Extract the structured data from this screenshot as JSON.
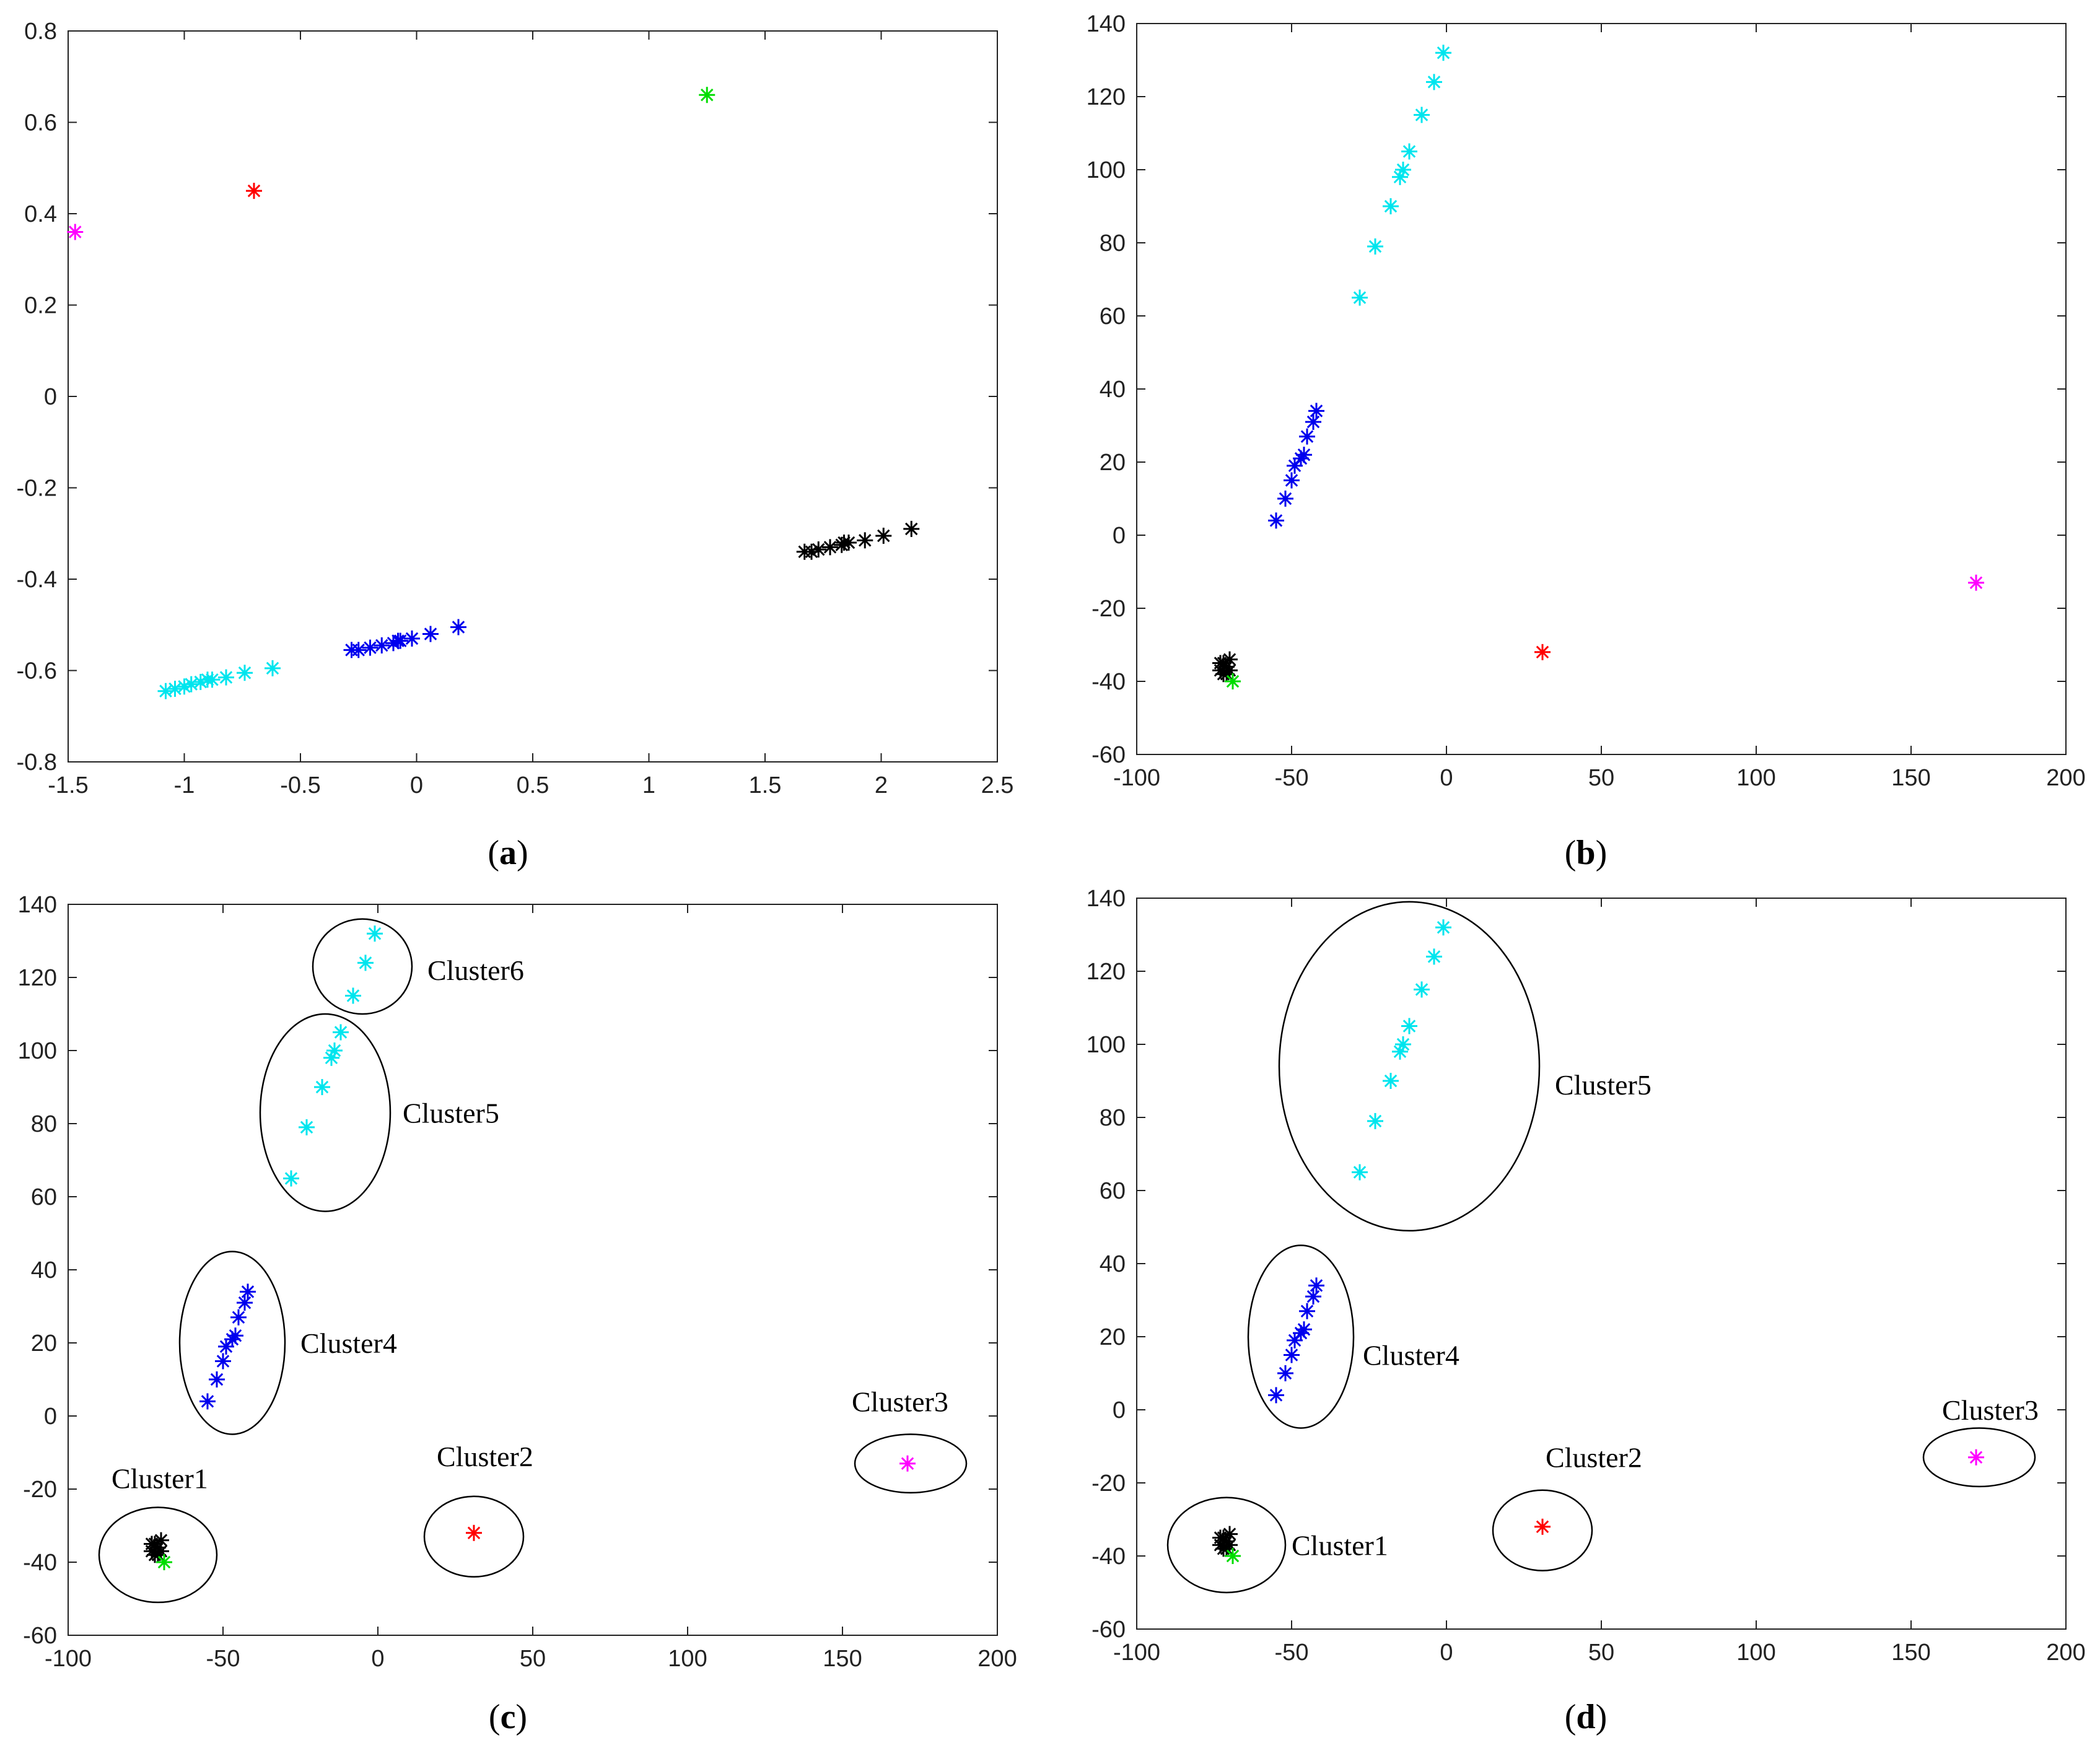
{
  "chart_data": [
    {
      "id": "a",
      "type": "scatter",
      "label": "a",
      "xlim": [
        -1.5,
        2.5
      ],
      "ylim": [
        -0.8,
        0.8
      ],
      "xticks": [
        -1.5,
        -1,
        -0.5,
        0,
        0.5,
        1,
        1.5,
        2,
        2.5
      ],
      "yticks": [
        -0.8,
        -0.6,
        -0.4,
        -0.2,
        0,
        0.2,
        0.4,
        0.6,
        0.8
      ],
      "series": [
        {
          "name": "cyan",
          "color": "#00e5ee",
          "points": [
            [
              -1.08,
              -0.645
            ],
            [
              -1.04,
              -0.64
            ],
            [
              -1.0,
              -0.635
            ],
            [
              -0.97,
              -0.63
            ],
            [
              -0.93,
              -0.625
            ],
            [
              -0.9,
              -0.62
            ],
            [
              -0.88,
              -0.62
            ],
            [
              -0.82,
              -0.615
            ],
            [
              -0.74,
              -0.605
            ],
            [
              -0.62,
              -0.595
            ]
          ]
        },
        {
          "name": "blue",
          "color": "#0000ee",
          "points": [
            [
              -0.28,
              -0.555
            ],
            [
              -0.25,
              -0.555
            ],
            [
              -0.2,
              -0.55
            ],
            [
              -0.15,
              -0.545
            ],
            [
              -0.1,
              -0.54
            ],
            [
              -0.08,
              -0.535
            ],
            [
              -0.07,
              -0.535
            ],
            [
              -0.02,
              -0.53
            ],
            [
              0.06,
              -0.52
            ],
            [
              0.18,
              -0.505
            ]
          ]
        },
        {
          "name": "black",
          "color": "#000000",
          "points": [
            [
              1.67,
              -0.34
            ],
            [
              1.7,
              -0.34
            ],
            [
              1.73,
              -0.335
            ],
            [
              1.78,
              -0.33
            ],
            [
              1.83,
              -0.325
            ],
            [
              1.84,
              -0.32
            ],
            [
              1.86,
              -0.32
            ],
            [
              1.93,
              -0.315
            ],
            [
              2.01,
              -0.305
            ],
            [
              2.13,
              -0.29
            ]
          ]
        },
        {
          "name": "red",
          "color": "#ff0000",
          "points": [
            [
              -0.7,
              0.45
            ]
          ]
        },
        {
          "name": "green",
          "color": "#00dd00",
          "points": [
            [
              1.25,
              0.66
            ]
          ]
        },
        {
          "name": "magenta",
          "color": "#ff00ff",
          "points": [
            [
              -1.47,
              0.36
            ]
          ]
        }
      ],
      "annotations": []
    },
    {
      "id": "b",
      "type": "scatter",
      "label": "b",
      "xlim": [
        -100,
        200
      ],
      "ylim": [
        -60,
        140
      ],
      "xticks": [
        -100,
        -50,
        0,
        50,
        100,
        150,
        200
      ],
      "yticks": [
        -60,
        -40,
        -20,
        0,
        20,
        40,
        60,
        80,
        100,
        120,
        140
      ],
      "series": [
        {
          "name": "cyan",
          "color": "#00e5ee",
          "points": [
            [
              -28,
              65
            ],
            [
              -23,
              79
            ],
            [
              -18,
              90
            ],
            [
              -15,
              98
            ],
            [
              -14,
              100
            ],
            [
              -12,
              105
            ],
            [
              -8,
              115
            ],
            [
              -4,
              124
            ],
            [
              -1,
              132
            ]
          ]
        },
        {
          "name": "blue",
          "color": "#0000ee",
          "points": [
            [
              -55,
              4
            ],
            [
              -52,
              10
            ],
            [
              -50,
              15
            ],
            [
              -49,
              19
            ],
            [
              -47,
              21
            ],
            [
              -46,
              22
            ],
            [
              -45,
              27
            ],
            [
              -43,
              31
            ],
            [
              -42,
              34
            ]
          ]
        },
        {
          "name": "black",
          "color": "#000000",
          "points": [
            [
              -73,
              -37
            ],
            [
              -72,
              -35
            ],
            [
              -71,
              -36
            ],
            [
              -72,
              -38
            ],
            [
              -70,
              -34
            ],
            [
              -71,
              -38
            ],
            [
              -73,
              -35
            ],
            [
              -70,
              -37
            ]
          ]
        },
        {
          "name": "green",
          "color": "#00dd00",
          "points": [
            [
              -69,
              -40
            ]
          ]
        },
        {
          "name": "red",
          "color": "#ff0000",
          "points": [
            [
              31,
              -32
            ]
          ]
        },
        {
          "name": "magenta",
          "color": "#ff00ff",
          "points": [
            [
              171,
              -13
            ]
          ]
        }
      ],
      "annotations": []
    },
    {
      "id": "c",
      "type": "scatter",
      "label": "c",
      "xlim": [
        -100,
        200
      ],
      "ylim": [
        -60,
        140
      ],
      "xticks": [
        -100,
        -50,
        0,
        50,
        100,
        150,
        200
      ],
      "yticks": [
        -60,
        -40,
        -20,
        0,
        20,
        40,
        60,
        80,
        100,
        120,
        140
      ],
      "series": [
        {
          "name": "cyan",
          "color": "#00e5ee",
          "points": [
            [
              -28,
              65
            ],
            [
              -23,
              79
            ],
            [
              -18,
              90
            ],
            [
              -15,
              98
            ],
            [
              -14,
              100
            ],
            [
              -12,
              105
            ],
            [
              -8,
              115
            ],
            [
              -4,
              124
            ],
            [
              -1,
              132
            ]
          ]
        },
        {
          "name": "blue",
          "color": "#0000ee",
          "points": [
            [
              -55,
              4
            ],
            [
              -52,
              10
            ],
            [
              -50,
              15
            ],
            [
              -49,
              19
            ],
            [
              -47,
              21
            ],
            [
              -46,
              22
            ],
            [
              -45,
              27
            ],
            [
              -43,
              31
            ],
            [
              -42,
              34
            ]
          ]
        },
        {
          "name": "black",
          "color": "#000000",
          "points": [
            [
              -73,
              -37
            ],
            [
              -72,
              -35
            ],
            [
              -71,
              -36
            ],
            [
              -72,
              -38
            ],
            [
              -70,
              -34
            ],
            [
              -71,
              -38
            ],
            [
              -73,
              -35
            ],
            [
              -70,
              -37
            ]
          ]
        },
        {
          "name": "green",
          "color": "#00dd00",
          "points": [
            [
              -69,
              -40
            ]
          ]
        },
        {
          "name": "red",
          "color": "#ff0000",
          "points": [
            [
              31,
              -32
            ]
          ]
        },
        {
          "name": "magenta",
          "color": "#ff00ff",
          "points": [
            [
              171,
              -13
            ]
          ]
        }
      ],
      "annotations": [
        {
          "text": "Cluster1",
          "cx": -71,
          "cy": -38,
          "rx": 19,
          "ry": 13,
          "tx": -86,
          "ty": -17
        },
        {
          "text": "Cluster2",
          "cx": 31,
          "cy": -33,
          "rx": 16,
          "ry": 11,
          "tx": 19,
          "ty": -11
        },
        {
          "text": "Cluster3",
          "cx": 172,
          "cy": -13,
          "rx": 18,
          "ry": 8,
          "tx": 153,
          "ty": 4
        },
        {
          "text": "Cluster4",
          "cx": -47,
          "cy": 20,
          "rx": 17,
          "ry": 25,
          "tx": -25,
          "ty": 20
        },
        {
          "text": "Cluster5",
          "cx": -17,
          "cy": 83,
          "rx": 21,
          "ry": 27,
          "tx": 8,
          "ty": 83
        },
        {
          "text": "Cluster6",
          "cx": -5,
          "cy": 123,
          "rx": 16,
          "ry": 13,
          "tx": 16,
          "ty": 122
        }
      ]
    },
    {
      "id": "d",
      "type": "scatter",
      "label": "d",
      "xlim": [
        -100,
        200
      ],
      "ylim": [
        -60,
        140
      ],
      "xticks": [
        -100,
        -50,
        0,
        50,
        100,
        150,
        200
      ],
      "yticks": [
        -60,
        -40,
        -20,
        0,
        20,
        40,
        60,
        80,
        100,
        120,
        140
      ],
      "series": [
        {
          "name": "cyan",
          "color": "#00e5ee",
          "points": [
            [
              -28,
              65
            ],
            [
              -23,
              79
            ],
            [
              -18,
              90
            ],
            [
              -15,
              98
            ],
            [
              -14,
              100
            ],
            [
              -12,
              105
            ],
            [
              -8,
              115
            ],
            [
              -4,
              124
            ],
            [
              -1,
              132
            ]
          ]
        },
        {
          "name": "blue",
          "color": "#0000ee",
          "points": [
            [
              -55,
              4
            ],
            [
              -52,
              10
            ],
            [
              -50,
              15
            ],
            [
              -49,
              19
            ],
            [
              -47,
              21
            ],
            [
              -46,
              22
            ],
            [
              -45,
              27
            ],
            [
              -43,
              31
            ],
            [
              -42,
              34
            ]
          ]
        },
        {
          "name": "black",
          "color": "#000000",
          "points": [
            [
              -73,
              -37
            ],
            [
              -72,
              -35
            ],
            [
              -71,
              -36
            ],
            [
              -72,
              -38
            ],
            [
              -70,
              -34
            ],
            [
              -71,
              -38
            ],
            [
              -73,
              -35
            ],
            [
              -70,
              -37
            ]
          ]
        },
        {
          "name": "green",
          "color": "#00dd00",
          "points": [
            [
              -69,
              -40
            ]
          ]
        },
        {
          "name": "red",
          "color": "#ff0000",
          "points": [
            [
              31,
              -32
            ]
          ]
        },
        {
          "name": "magenta",
          "color": "#ff00ff",
          "points": [
            [
              171,
              -13
            ]
          ]
        }
      ],
      "annotations": [
        {
          "text": "Cluster1",
          "cx": -71,
          "cy": -37,
          "rx": 19,
          "ry": 13,
          "tx": -50,
          "ty": -37
        },
        {
          "text": "Cluster2",
          "cx": 31,
          "cy": -33,
          "rx": 16,
          "ry": 11,
          "tx": 32,
          "ty": -13
        },
        {
          "text": "Cluster3",
          "cx": 172,
          "cy": -13,
          "rx": 18,
          "ry": 8,
          "tx": 160,
          "ty": 0
        },
        {
          "text": "Cluster4",
          "cx": -47,
          "cy": 20,
          "rx": 17,
          "ry": 25,
          "tx": -27,
          "ty": 15
        },
        {
          "text": "Cluster5",
          "cx": -12,
          "cy": 94,
          "rx": 42,
          "ry": 45,
          "tx": 35,
          "ty": 89
        },
        {
          "text": "",
          "cx": 0,
          "cy": 0,
          "rx": 0,
          "ry": 0,
          "tx": 0,
          "ty": 0
        }
      ]
    }
  ]
}
